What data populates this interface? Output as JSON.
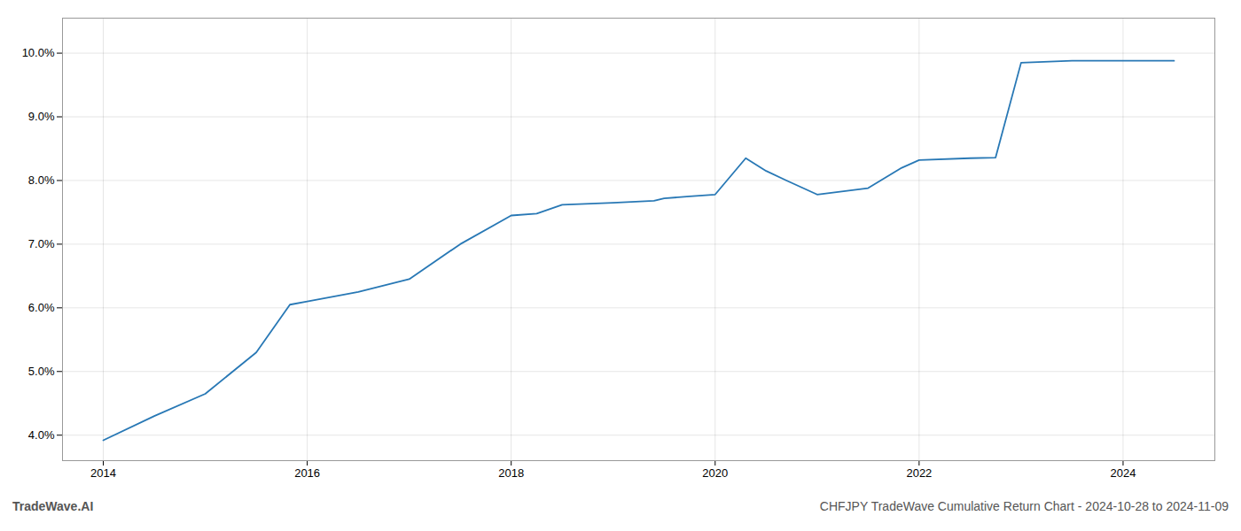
{
  "chart_data": {
    "type": "line",
    "title": "CHFJPY TradeWave Cumulative Return Chart - 2024-10-28 to 2024-11-09",
    "annotations": [
      "TradeWave.AI"
    ],
    "x": [
      2014.0,
      2014.5,
      2015.0,
      2015.5,
      2015.83,
      2016.0,
      2016.5,
      2017.0,
      2017.5,
      2018.0,
      2018.25,
      2018.5,
      2019.0,
      2019.4,
      2019.5,
      2019.75,
      2020.0,
      2020.3,
      2020.5,
      2020.7,
      2021.0,
      2021.5,
      2021.83,
      2022.0,
      2022.5,
      2022.75,
      2023.0,
      2023.5,
      2023.7,
      2024.0,
      2024.5
    ],
    "values": [
      3.92,
      4.3,
      4.65,
      5.3,
      6.05,
      6.1,
      6.25,
      6.45,
      7.0,
      7.45,
      7.48,
      7.62,
      7.65,
      7.68,
      7.72,
      7.75,
      7.78,
      8.35,
      8.15,
      8.0,
      7.78,
      7.88,
      8.2,
      8.32,
      8.35,
      8.36,
      9.85,
      9.88,
      9.88,
      9.88,
      9.88
    ],
    "color": "#2878b5",
    "xlim": [
      2013.6,
      2024.9
    ],
    "ylim": [
      3.6,
      10.55
    ],
    "xticks": [
      2014,
      2016,
      2018,
      2020,
      2022,
      2024
    ],
    "yticks": [
      {
        "value": 4.0,
        "label": "4.0%"
      },
      {
        "value": 5.0,
        "label": "5.0%"
      },
      {
        "value": 6.0,
        "label": "6.0%"
      },
      {
        "value": 7.0,
        "label": "7.0%"
      },
      {
        "value": 8.0,
        "label": "8.0%"
      },
      {
        "value": 9.0,
        "label": "9.0%"
      },
      {
        "value": 10.0,
        "label": "10.0%"
      }
    ],
    "grid": true
  }
}
